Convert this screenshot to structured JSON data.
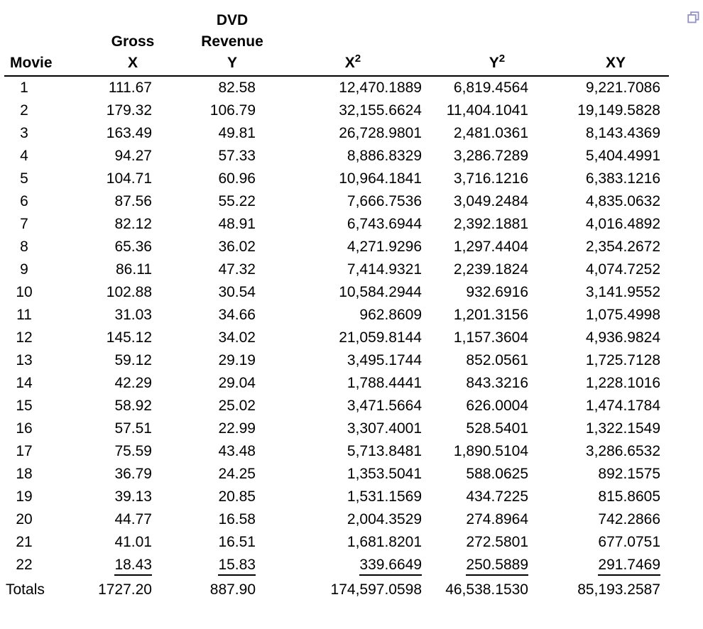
{
  "corner_icon": {
    "name": "restore-window-icon",
    "color": "#9191c9"
  },
  "table": {
    "header": {
      "movie": "Movie",
      "gross": {
        "line1": "Gross",
        "line2": "X"
      },
      "dvd": {
        "line1": "DVD",
        "line2": "Revenue",
        "line3": "Y"
      },
      "x_squared": {
        "base": "X",
        "sup": "2"
      },
      "y_squared": {
        "base": "Y",
        "sup": "2"
      },
      "xy": "XY"
    },
    "rows": [
      [
        "1",
        "111.67",
        "82.58",
        "12,470.1889",
        "6,819.4564",
        "9,221.7086"
      ],
      [
        "2",
        "179.32",
        "106.79",
        "32,155.6624",
        "11,404.1041",
        "19,149.5828"
      ],
      [
        "3",
        "163.49",
        "49.81",
        "26,728.9801",
        "2,481.0361",
        "8,143.4369"
      ],
      [
        "4",
        "94.27",
        "57.33",
        "8,886.8329",
        "3,286.7289",
        "5,404.4991"
      ],
      [
        "5",
        "104.71",
        "60.96",
        "10,964.1841",
        "3,716.1216",
        "6,383.1216"
      ],
      [
        "6",
        "87.56",
        "55.22",
        "7,666.7536",
        "3,049.2484",
        "4,835.0632"
      ],
      [
        "7",
        "82.12",
        "48.91",
        "6,743.6944",
        "2,392.1881",
        "4,016.4892"
      ],
      [
        "8",
        "65.36",
        "36.02",
        "4,271.9296",
        "1,297.4404",
        "2,354.2672"
      ],
      [
        "9",
        "86.11",
        "47.32",
        "7,414.9321",
        "2,239.1824",
        "4,074.7252"
      ],
      [
        "10",
        "102.88",
        "30.54",
        "10,584.2944",
        "932.6916",
        "3,141.9552"
      ],
      [
        "11",
        "31.03",
        "34.66",
        "962.8609",
        "1,201.3156",
        "1,075.4998"
      ],
      [
        "12",
        "145.12",
        "34.02",
        "21,059.8144",
        "1,157.3604",
        "4,936.9824"
      ],
      [
        "13",
        "59.12",
        "29.19",
        "3,495.1744",
        "852.0561",
        "1,725.7128"
      ],
      [
        "14",
        "42.29",
        "29.04",
        "1,788.4441",
        "843.3216",
        "1,228.1016"
      ],
      [
        "15",
        "58.92",
        "25.02",
        "3,471.5664",
        "626.0004",
        "1,474.1784"
      ],
      [
        "16",
        "57.51",
        "22.99",
        "3,307.4001",
        "528.5401",
        "1,322.1549"
      ],
      [
        "17",
        "75.59",
        "43.48",
        "5,713.8481",
        "1,890.5104",
        "3,286.6532"
      ],
      [
        "18",
        "36.79",
        "24.25",
        "1,353.5041",
        "588.0625",
        "892.1575"
      ],
      [
        "19",
        "39.13",
        "20.85",
        "1,531.1569",
        "434.7225",
        "815.8605"
      ],
      [
        "20",
        "44.77",
        "16.58",
        "2,004.3529",
        "274.8964",
        "742.2866"
      ],
      [
        "21",
        "41.01",
        "16.51",
        "1,681.8201",
        "272.5801",
        "677.0751"
      ],
      [
        "22",
        "18.43",
        "15.83",
        "339.6649",
        "250.5889",
        "291.7469"
      ]
    ],
    "totals": {
      "label": "Totals",
      "x": "1727.20",
      "y": "887.90",
      "x2": "174,597.0598",
      "y2": "46,538.1530",
      "xy": "85,193.2587"
    }
  }
}
